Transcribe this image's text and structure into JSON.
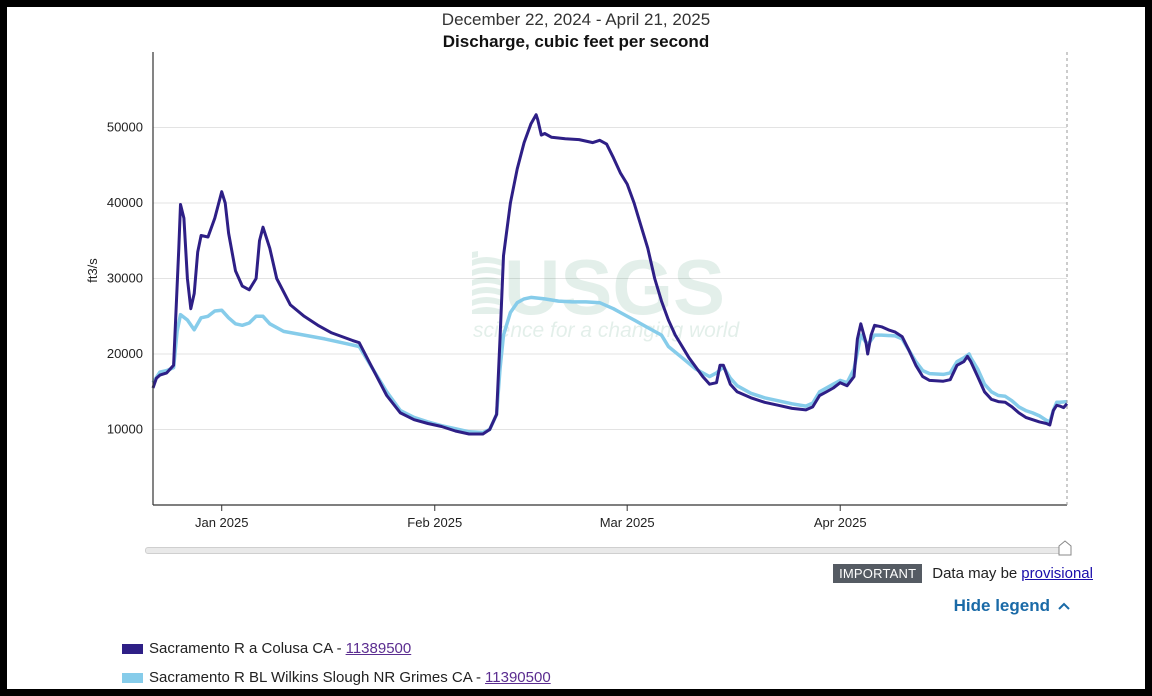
{
  "chart_data": {
    "type": "line",
    "subtitle": "December 22, 2024 - April 21, 2025",
    "title": "Discharge, cubic feet per second",
    "ylabel": "ft3/s",
    "xlabel": "",
    "ylim": [
      0,
      60000
    ],
    "xlim": [
      "2024-12-22",
      "2025-04-21"
    ],
    "yticks": [
      10000,
      20000,
      30000,
      40000,
      50000
    ],
    "ytick_labels": [
      "10000",
      "20000",
      "30000",
      "40000",
      "50000"
    ],
    "xticks": [
      "2025-01-01",
      "2025-02-01",
      "2025-03-01",
      "2025-04-01"
    ],
    "xtick_labels": [
      "Jan 2025",
      "Feb 2025",
      "Mar 2025",
      "Apr 2025"
    ],
    "grid": true,
    "watermark": "USGS science for a changing world",
    "series": [
      {
        "name": "Sacramento R a Colusa CA",
        "site": "11389500",
        "color": "#2e1f86",
        "points": [
          [
            "2024-12-22",
            15500
          ],
          [
            "2024-12-22T12",
            16800
          ],
          [
            "2024-12-23",
            17200
          ],
          [
            "2024-12-24",
            17500
          ],
          [
            "2024-12-25",
            18500
          ],
          [
            "2024-12-25T18",
            34000
          ],
          [
            "2024-12-26",
            39800
          ],
          [
            "2024-12-26T12",
            38000
          ],
          [
            "2024-12-27",
            30000
          ],
          [
            "2024-12-27T12",
            26000
          ],
          [
            "2024-12-28",
            28000
          ],
          [
            "2024-12-28T12",
            33500
          ],
          [
            "2024-12-29",
            35700
          ],
          [
            "2024-12-30",
            35500
          ],
          [
            "2024-12-31",
            38000
          ],
          [
            "2025-01-01",
            41500
          ],
          [
            "2025-01-01T12",
            40000
          ],
          [
            "2025-01-02",
            36000
          ],
          [
            "2025-01-03",
            31000
          ],
          [
            "2025-01-04",
            29000
          ],
          [
            "2025-01-05",
            28500
          ],
          [
            "2025-01-06",
            30000
          ],
          [
            "2025-01-06T12",
            35000
          ],
          [
            "2025-01-07",
            36800
          ],
          [
            "2025-01-08",
            34000
          ],
          [
            "2025-01-09",
            30000
          ],
          [
            "2025-01-11",
            26500
          ],
          [
            "2025-01-13",
            25000
          ],
          [
            "2025-01-15",
            23800
          ],
          [
            "2025-01-17",
            22800
          ],
          [
            "2025-01-20",
            21800
          ],
          [
            "2025-01-21",
            21500
          ],
          [
            "2025-01-23",
            18000
          ],
          [
            "2025-01-25",
            14500
          ],
          [
            "2025-01-27",
            12200
          ],
          [
            "2025-01-29",
            11300
          ],
          [
            "2025-01-31",
            10800
          ],
          [
            "2025-02-02",
            10400
          ],
          [
            "2025-02-04",
            9800
          ],
          [
            "2025-02-06",
            9400
          ],
          [
            "2025-02-08",
            9400
          ],
          [
            "2025-02-09",
            10000
          ],
          [
            "2025-02-10",
            12000
          ],
          [
            "2025-02-10T12",
            22000
          ],
          [
            "2025-02-11",
            33000
          ],
          [
            "2025-02-12",
            40000
          ],
          [
            "2025-02-13",
            44500
          ],
          [
            "2025-02-14",
            48000
          ],
          [
            "2025-02-15",
            50500
          ],
          [
            "2025-02-15T18",
            51700
          ],
          [
            "2025-02-16",
            51000
          ],
          [
            "2025-02-16T12",
            49000
          ],
          [
            "2025-02-17",
            49200
          ],
          [
            "2025-02-18",
            48700
          ],
          [
            "2025-02-20",
            48500
          ],
          [
            "2025-02-22",
            48400
          ],
          [
            "2025-02-24",
            48000
          ],
          [
            "2025-02-25",
            48300
          ],
          [
            "2025-02-26",
            47800
          ],
          [
            "2025-02-27",
            46000
          ],
          [
            "2025-02-28",
            44000
          ],
          [
            "2025-03-01",
            42500
          ],
          [
            "2025-03-02",
            40000
          ],
          [
            "2025-03-03",
            37000
          ],
          [
            "2025-03-04",
            34000
          ],
          [
            "2025-03-05",
            30000
          ],
          [
            "2025-03-06",
            27000
          ],
          [
            "2025-03-07",
            24500
          ],
          [
            "2025-03-08",
            22500
          ],
          [
            "2025-03-10",
            19500
          ],
          [
            "2025-03-12",
            17000
          ],
          [
            "2025-03-13",
            16000
          ],
          [
            "2025-03-14",
            16200
          ],
          [
            "2025-03-14T12",
            18500
          ],
          [
            "2025-03-15",
            18500
          ],
          [
            "2025-03-16",
            16000
          ],
          [
            "2025-03-17",
            15000
          ],
          [
            "2025-03-19",
            14200
          ],
          [
            "2025-03-21",
            13600
          ],
          [
            "2025-03-23",
            13200
          ],
          [
            "2025-03-25",
            12800
          ],
          [
            "2025-03-27",
            12600
          ],
          [
            "2025-03-28",
            13000
          ],
          [
            "2025-03-29",
            14500
          ],
          [
            "2025-03-30",
            15000
          ],
          [
            "2025-03-31",
            15500
          ],
          [
            "2025-04-01",
            16200
          ],
          [
            "2025-04-02",
            15800
          ],
          [
            "2025-04-03",
            17000
          ],
          [
            "2025-04-03T12",
            22000
          ],
          [
            "2025-04-04",
            24000
          ],
          [
            "2025-04-04T18",
            21500
          ],
          [
            "2025-04-05",
            20000
          ],
          [
            "2025-04-05T12",
            22500
          ],
          [
            "2025-04-06",
            23800
          ],
          [
            "2025-04-07",
            23600
          ],
          [
            "2025-04-08",
            23200
          ],
          [
            "2025-04-09",
            22900
          ],
          [
            "2025-04-10",
            22300
          ],
          [
            "2025-04-11",
            20500
          ],
          [
            "2025-04-12",
            18500
          ],
          [
            "2025-04-13",
            17000
          ],
          [
            "2025-04-14",
            16500
          ],
          [
            "2025-04-16",
            16400
          ],
          [
            "2025-04-17",
            16600
          ],
          [
            "2025-04-18",
            18500
          ],
          [
            "2025-04-19",
            19000
          ],
          [
            "2025-04-19T12",
            19700
          ],
          [
            "2025-04-20",
            19000
          ],
          [
            "2025-04-21",
            17000
          ],
          [
            "2025-04-22",
            15000
          ],
          [
            "2025-04-23",
            14000
          ],
          [
            "2025-04-24",
            13700
          ],
          [
            "2025-04-25",
            13600
          ],
          [
            "2025-04-26",
            13000
          ],
          [
            "2025-04-27",
            12200
          ],
          [
            "2025-04-28",
            11600
          ],
          [
            "2025-04-29",
            11300
          ],
          [
            "2025-04-30",
            11000
          ],
          [
            "2025-05-01",
            10800
          ],
          [
            "2025-05-01T12",
            10600
          ],
          [
            "2025-05-02",
            12500
          ],
          [
            "2025-05-02T12",
            13200
          ],
          [
            "2025-05-03",
            13100
          ],
          [
            "2025-05-03T12",
            12900
          ],
          [
            "2025-05-04",
            13400
          ]
        ]
      },
      {
        "name": "Sacramento R BL Wilkins Slough NR Grimes CA",
        "site": "11390500",
        "color": "#86ccea",
        "points": [
          [
            "2024-12-22",
            16200
          ],
          [
            "2024-12-23",
            17600
          ],
          [
            "2024-12-24",
            17800
          ],
          [
            "2024-12-25",
            18200
          ],
          [
            "2024-12-25T12",
            23000
          ],
          [
            "2024-12-26",
            25200
          ],
          [
            "2024-12-27",
            24500
          ],
          [
            "2024-12-28",
            23200
          ],
          [
            "2024-12-29",
            24800
          ],
          [
            "2024-12-30",
            25000
          ],
          [
            "2024-12-31",
            25700
          ],
          [
            "2025-01-01",
            25800
          ],
          [
            "2025-01-02",
            24800
          ],
          [
            "2025-01-03",
            24000
          ],
          [
            "2025-01-04",
            23800
          ],
          [
            "2025-01-05",
            24100
          ],
          [
            "2025-01-06",
            25000
          ],
          [
            "2025-01-07",
            25000
          ],
          [
            "2025-01-08",
            24000
          ],
          [
            "2025-01-10",
            23000
          ],
          [
            "2025-01-13",
            22500
          ],
          [
            "2025-01-16",
            22000
          ],
          [
            "2025-01-19",
            21400
          ],
          [
            "2025-01-21",
            21000
          ],
          [
            "2025-01-23",
            18000
          ],
          [
            "2025-01-25",
            15000
          ],
          [
            "2025-01-27",
            12500
          ],
          [
            "2025-01-29",
            11600
          ],
          [
            "2025-01-31",
            11000
          ],
          [
            "2025-02-02",
            10500
          ],
          [
            "2025-02-04",
            10100
          ],
          [
            "2025-02-06",
            9700
          ],
          [
            "2025-02-08",
            9600
          ],
          [
            "2025-02-09",
            10000
          ],
          [
            "2025-02-10",
            12000
          ],
          [
            "2025-02-10T12",
            18000
          ],
          [
            "2025-02-11",
            22500
          ],
          [
            "2025-02-12",
            25500
          ],
          [
            "2025-02-13",
            26800
          ],
          [
            "2025-02-14",
            27300
          ],
          [
            "2025-02-15",
            27500
          ],
          [
            "2025-02-17",
            27300
          ],
          [
            "2025-02-19",
            27000
          ],
          [
            "2025-02-21",
            26900
          ],
          [
            "2025-02-23",
            26900
          ],
          [
            "2025-02-25",
            26800
          ],
          [
            "2025-02-27",
            26000
          ],
          [
            "2025-02-28",
            25500
          ],
          [
            "2025-03-02",
            24500
          ],
          [
            "2025-03-04",
            23500
          ],
          [
            "2025-03-06",
            22500
          ],
          [
            "2025-03-07",
            21000
          ],
          [
            "2025-03-09",
            19500
          ],
          [
            "2025-03-11",
            18000
          ],
          [
            "2025-03-13",
            17000
          ],
          [
            "2025-03-14",
            17500
          ],
          [
            "2025-03-15",
            18300
          ],
          [
            "2025-03-16",
            16800
          ],
          [
            "2025-03-17",
            15800
          ],
          [
            "2025-03-19",
            14800
          ],
          [
            "2025-03-21",
            14200
          ],
          [
            "2025-03-23",
            13800
          ],
          [
            "2025-03-25",
            13400
          ],
          [
            "2025-03-27",
            13100
          ],
          [
            "2025-03-28",
            13500
          ],
          [
            "2025-03-29",
            15000
          ],
          [
            "2025-03-31",
            16000
          ],
          [
            "2025-04-01",
            16500
          ],
          [
            "2025-04-02",
            16200
          ],
          [
            "2025-04-03",
            18000
          ],
          [
            "2025-04-04",
            22500
          ],
          [
            "2025-04-05",
            21200
          ],
          [
            "2025-04-06",
            22500
          ],
          [
            "2025-04-07",
            22500
          ],
          [
            "2025-04-09",
            22400
          ],
          [
            "2025-04-10",
            22000
          ],
          [
            "2025-04-11",
            20500
          ],
          [
            "2025-04-12",
            19000
          ],
          [
            "2025-04-13",
            17800
          ],
          [
            "2025-04-14",
            17400
          ],
          [
            "2025-04-16",
            17300
          ],
          [
            "2025-04-17",
            17500
          ],
          [
            "2025-04-18",
            19000
          ],
          [
            "2025-04-19",
            19500
          ],
          [
            "2025-04-19T18",
            20000
          ],
          [
            "2025-04-20",
            19500
          ],
          [
            "2025-04-21",
            18000
          ],
          [
            "2025-04-22",
            16000
          ],
          [
            "2025-04-23",
            15000
          ],
          [
            "2025-04-24",
            14500
          ],
          [
            "2025-04-25",
            14400
          ],
          [
            "2025-04-26",
            13800
          ],
          [
            "2025-04-27",
            13000
          ],
          [
            "2025-04-28",
            12500
          ],
          [
            "2025-04-29",
            12200
          ],
          [
            "2025-04-30",
            11800
          ],
          [
            "2025-05-01",
            11200
          ],
          [
            "2025-05-01T12",
            11000
          ],
          [
            "2025-05-02",
            12500
          ],
          [
            "2025-05-02T12",
            13600
          ],
          [
            "2025-05-03",
            13600
          ],
          [
            "2025-05-04",
            13700
          ]
        ]
      }
    ]
  },
  "notice": {
    "badge": "IMPORTANT",
    "text": "Data may be",
    "link_text": "provisional"
  },
  "legend": {
    "toggle_label": "Hide legend",
    "items": [
      {
        "label": "Sacramento R a Colusa CA -",
        "site": "11389500",
        "color": "#2e1f86"
      },
      {
        "label": "Sacramento R BL Wilkins Slough NR Grimes CA -",
        "site": "11390500",
        "color": "#86ccea"
      }
    ]
  }
}
